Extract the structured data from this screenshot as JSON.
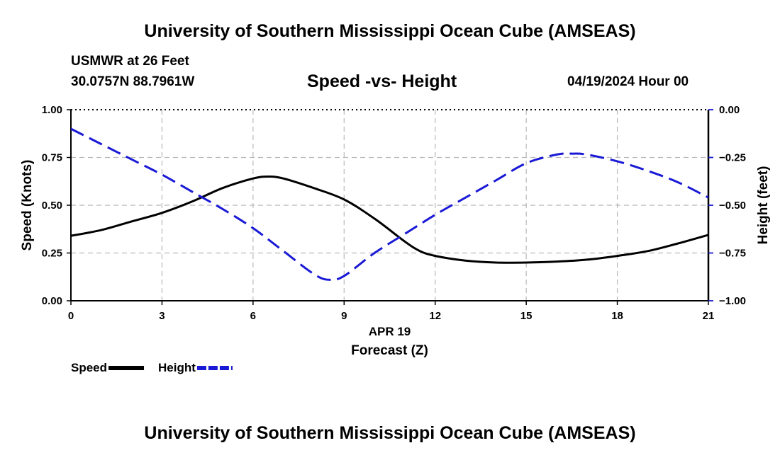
{
  "header": {
    "title": "University of Southern Mississippi Ocean Cube (AMSEAS)",
    "station": "USMWR at 26 Feet",
    "coordinates": "30.0757N  88.7961W",
    "subtitle": "Speed -vs- Height",
    "datetime": "04/19/2024 Hour 00"
  },
  "footer": {
    "title": "University of Southern Mississippi Ocean Cube (AMSEAS)"
  },
  "chart_data": {
    "type": "line",
    "title": "Speed -vs- Height",
    "xlabel": "Forecast (Z)",
    "xlabel_date": "APR 19",
    "ylabel": "Speed (Knots)",
    "y2label": "Height (feet)",
    "xlim": [
      0,
      21
    ],
    "ylim": [
      0,
      1
    ],
    "y2lim": [
      -1,
      0
    ],
    "xticks": [
      0,
      3,
      6,
      9,
      12,
      15,
      18,
      21
    ],
    "xtick_labels": [
      "0",
      "3",
      "6",
      "9",
      "12",
      "15",
      "18",
      "21"
    ],
    "yticks": [
      0,
      0.25,
      0.5,
      0.75,
      1
    ],
    "ytick_labels": [
      "0.00",
      "0.25",
      "0.50",
      "0.75",
      "1.00"
    ],
    "y2ticks": [
      -1,
      -0.75,
      -0.5,
      -0.25,
      0
    ],
    "y2tick_labels": [
      "−1.00",
      "−0.75",
      "−0.50",
      "−0.25",
      "0.00"
    ],
    "grid": true,
    "legend_placement": "bottom-left",
    "series": [
      {
        "name": "Speed",
        "axis": "left",
        "color": "#000000",
        "style": "solid",
        "x": [
          0,
          1,
          2,
          3,
          4,
          5,
          6,
          6.5,
          7,
          8,
          9,
          10,
          11,
          11.5,
          12,
          13,
          14,
          15,
          16,
          17,
          18,
          19,
          20,
          21
        ],
        "values": [
          0.34,
          0.37,
          0.415,
          0.46,
          0.52,
          0.59,
          0.64,
          0.65,
          0.64,
          0.59,
          0.53,
          0.43,
          0.31,
          0.26,
          0.235,
          0.21,
          0.2,
          0.2,
          0.205,
          0.215,
          0.235,
          0.26,
          0.3,
          0.345
        ]
      },
      {
        "name": "Height",
        "axis": "right",
        "color": "#1a1ad6",
        "style": "dashed",
        "x": [
          0,
          1,
          2,
          3,
          4,
          5,
          6,
          7,
          8,
          8.5,
          9,
          10,
          11,
          12,
          13,
          14,
          15,
          16,
          16.5,
          17,
          18,
          19,
          20,
          21
        ],
        "values": [
          -0.1,
          -0.18,
          -0.26,
          -0.34,
          -0.43,
          -0.52,
          -0.62,
          -0.74,
          -0.86,
          -0.89,
          -0.87,
          -0.75,
          -0.65,
          -0.55,
          -0.46,
          -0.37,
          -0.28,
          -0.235,
          -0.23,
          -0.235,
          -0.27,
          -0.32,
          -0.38,
          -0.46
        ]
      }
    ]
  }
}
